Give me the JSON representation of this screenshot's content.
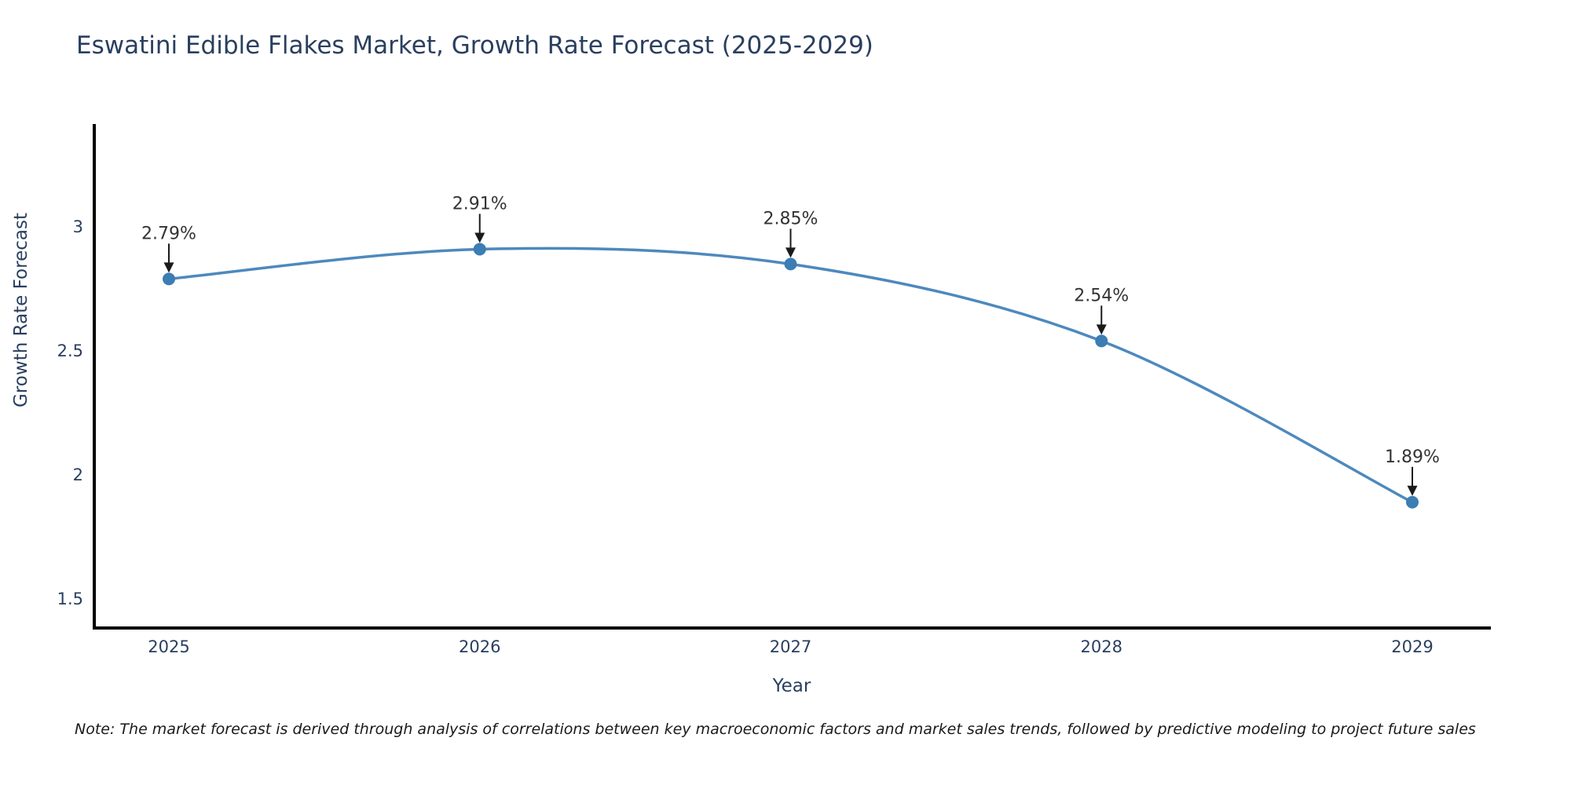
{
  "page": {
    "title": "Eswatini Edible Flakes Market, Growth Rate Forecast (2025-2029)",
    "note": "Note: The market forecast is derived through analysis of correlations between key macroeconomic factors and market sales trends, followed by predictive modeling to project future sales"
  },
  "chart_data": {
    "type": "line",
    "title": "Eswatini Edible Flakes Market, Growth Rate Forecast (2025-2029)",
    "xlabel": "Year",
    "ylabel": "Growth Rate Forecast",
    "categories": [
      "2025",
      "2026",
      "2027",
      "2028",
      "2029"
    ],
    "x": [
      2025,
      2026,
      2027,
      2028,
      2029
    ],
    "values": [
      2.79,
      2.91,
      2.85,
      2.54,
      1.89
    ],
    "point_labels": [
      "2.79%",
      "2.91%",
      "2.85%",
      "2.54%",
      "1.89%"
    ],
    "yticks": [
      3,
      2.5,
      2,
      1.5
    ],
    "ytick_labels": [
      "3",
      "2.5",
      "2",
      "1.5"
    ],
    "ylim": [
      1.4,
      3.45
    ],
    "grid": false,
    "legend": false,
    "line_shape": "spline",
    "annotations_have_arrows": true,
    "colors": {
      "line": "#4d89bd",
      "marker": "#3c7db4",
      "axis": "#000000",
      "text": "#2a3f5f",
      "annotation": "#333333",
      "arrow": "#1a1a1a"
    }
  }
}
